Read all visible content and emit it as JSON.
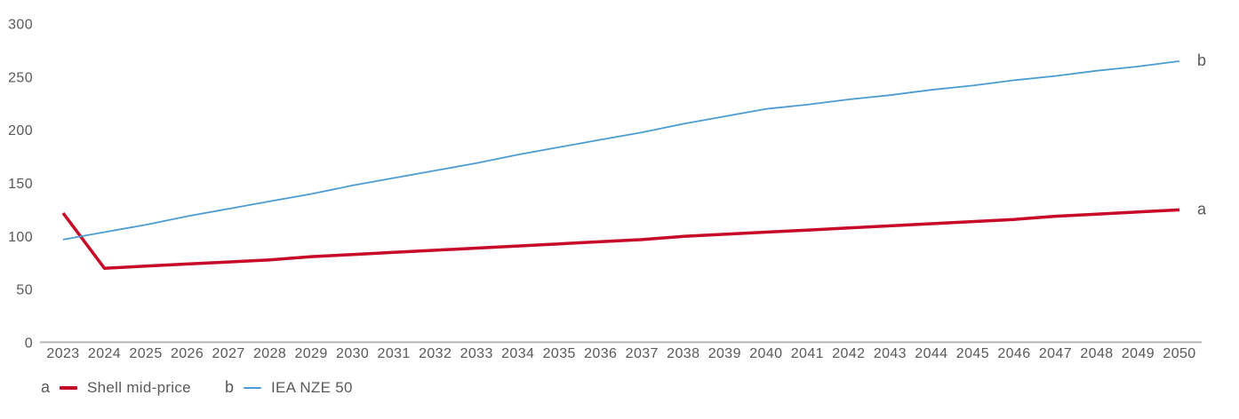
{
  "chart_data": {
    "type": "line",
    "title": "",
    "xlabel": "",
    "ylabel": "",
    "x": [
      2023,
      2024,
      2025,
      2026,
      2027,
      2028,
      2029,
      2030,
      2031,
      2032,
      2033,
      2034,
      2035,
      2036,
      2037,
      2038,
      2039,
      2040,
      2041,
      2042,
      2043,
      2044,
      2045,
      2046,
      2047,
      2048,
      2049,
      2050
    ],
    "series": [
      {
        "tag": "a",
        "name": "Shell mid-price",
        "color": "#c70a28",
        "stroke_width": 3.5,
        "values": [
          122,
          70,
          72,
          74,
          76,
          78,
          81,
          83,
          85,
          87,
          89,
          91,
          93,
          95,
          97,
          100,
          102,
          104,
          106,
          108,
          110,
          112,
          114,
          116,
          119,
          121,
          123,
          125
        ]
      },
      {
        "tag": "b",
        "name": "IEA NZE 50",
        "color": "#4a9cd2",
        "stroke_width": 1.8,
        "values": [
          97,
          104,
          111,
          119,
          126,
          133,
          140,
          148,
          155,
          162,
          169,
          177,
          184,
          191,
          198,
          206,
          213,
          220,
          224,
          229,
          233,
          238,
          242,
          247,
          251,
          256,
          260,
          265
        ]
      }
    ],
    "ylim": [
      0,
      300
    ],
    "yticks": [
      0,
      50,
      100,
      150,
      200,
      250,
      300
    ],
    "grid": false,
    "legend_position": "bottom-left"
  },
  "legend": {
    "items": [
      {
        "tag": "a",
        "label": "Shell mid-price",
        "color": "#c70a28"
      },
      {
        "tag": "b",
        "label": "IEA NZE 50",
        "color": "#4a9cd2"
      }
    ]
  },
  "colors": {
    "axis_line": "#b5b6b8",
    "tick_text": "#58595c",
    "background": "#ffffff"
  }
}
